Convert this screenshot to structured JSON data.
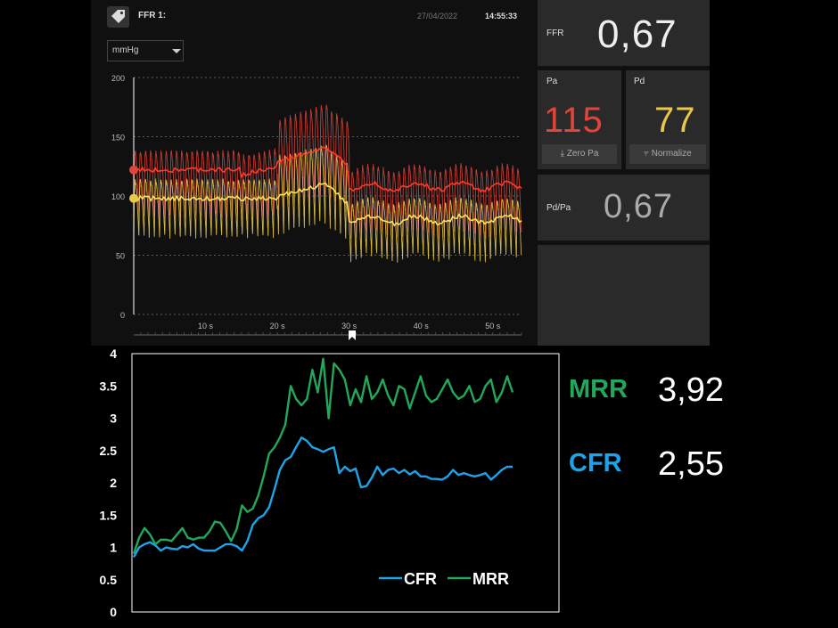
{
  "monitor": {
    "header": {
      "title": "FFR 1:",
      "date": "27/04/2022",
      "time": "14:55:33",
      "tag_icon": "tag-icon"
    },
    "unit_select": {
      "value": "mmHg"
    },
    "y_ticks": [
      "200",
      "150",
      "100",
      "50",
      "0"
    ],
    "x_ticks": [
      "10 s",
      "20 s",
      "30 s",
      "40 s",
      "50 s"
    ],
    "colors": {
      "pa": "#e0443a",
      "pd": "#e8c94a",
      "bg": "#101010"
    }
  },
  "tiles": {
    "ffr": {
      "label": "FFR",
      "value": "0,67"
    },
    "pa": {
      "label": "Pa",
      "value": "115",
      "button": "Zero Pa"
    },
    "pd": {
      "label": "Pd",
      "value": "77",
      "button": "Normalize"
    },
    "pdpa": {
      "label": "Pd/Pa",
      "value": "0,67"
    }
  },
  "summary": {
    "mrr_label": "MRR",
    "mrr_value": "3,92",
    "cfr_label": "CFR",
    "cfr_value": "2,55"
  },
  "chart_data": {
    "type": "line",
    "y_ticks": [
      "4",
      "3.5",
      "3",
      "2.5",
      "2",
      "1.5",
      "1",
      "0.5",
      "0"
    ],
    "ylim": [
      0,
      4
    ],
    "legend_position": "bottom-right",
    "series": [
      {
        "name": "CFR",
        "color": "#1fa3e8",
        "values": [
          0.85,
          1.0,
          1.05,
          1.08,
          1.03,
          0.95,
          1.0,
          0.98,
          0.97,
          1.02,
          1.0,
          1.05,
          0.98,
          0.95,
          0.95,
          0.95,
          1.0,
          1.05,
          1.05,
          1.02,
          0.95,
          1.1,
          1.35,
          1.45,
          1.5,
          1.62,
          1.9,
          2.2,
          2.35,
          2.4,
          2.55,
          2.7,
          2.65,
          2.55,
          2.52,
          2.48,
          2.52,
          2.55,
          2.15,
          2.25,
          2.18,
          2.22,
          1.93,
          1.95,
          2.08,
          2.25,
          2.12,
          2.2,
          2.22,
          2.15,
          2.2,
          2.13,
          2.18,
          2.1,
          2.1,
          2.06,
          2.06,
          2.05,
          2.1,
          2.2,
          2.12,
          2.15,
          2.12,
          2.1,
          2.12,
          2.15,
          2.05,
          2.12,
          2.2,
          2.25,
          2.25
        ]
      },
      {
        "name": "MRR",
        "color": "#22a85a",
        "values": [
          0.9,
          1.15,
          1.3,
          1.2,
          1.05,
          1.12,
          1.12,
          1.1,
          1.2,
          1.3,
          1.15,
          1.12,
          1.15,
          1.15,
          1.25,
          1.4,
          1.38,
          1.25,
          1.1,
          1.28,
          1.65,
          1.55,
          1.6,
          1.8,
          2.1,
          2.45,
          2.55,
          2.7,
          2.9,
          3.5,
          3.3,
          3.2,
          3.3,
          3.75,
          3.4,
          3.92,
          3.0,
          3.85,
          3.75,
          3.6,
          3.2,
          3.45,
          3.25,
          3.65,
          3.3,
          3.4,
          3.6,
          3.35,
          3.2,
          3.5,
          3.45,
          3.15,
          3.4,
          3.65,
          3.35,
          3.25,
          3.3,
          3.45,
          3.6,
          3.4,
          3.3,
          3.35,
          3.5,
          3.25,
          3.3,
          3.5,
          3.6,
          3.25,
          3.4,
          3.65,
          3.4
        ]
      }
    ]
  }
}
